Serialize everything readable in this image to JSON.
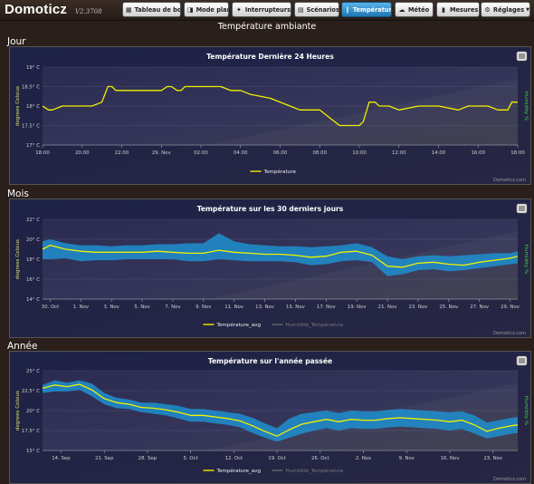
{
  "app": {
    "logo": "Domoticz",
    "version": "V2.3708"
  },
  "nav": [
    {
      "label": "Tableau de bord",
      "icon": "dashboard-icon",
      "glyph": "▦"
    },
    {
      "label": "Mode plan",
      "icon": "floorplan-icon",
      "glyph": "◨"
    },
    {
      "label": "Interrupteurs",
      "icon": "bulb-icon",
      "glyph": "✦"
    },
    {
      "label": "Scénarios",
      "icon": "scenes-icon",
      "glyph": "▤"
    },
    {
      "label": "Température",
      "icon": "thermometer-icon",
      "glyph": "❙",
      "active": true
    },
    {
      "label": "Météo",
      "icon": "weather-icon",
      "glyph": "☁"
    },
    {
      "label": "Mesures",
      "icon": "meter-icon",
      "glyph": "▮"
    },
    {
      "label": "Réglages",
      "icon": "settings-icon",
      "glyph": "⚙",
      "dropdown": true
    }
  ],
  "page_title": "Température ambiante",
  "sections": {
    "day": "Jour",
    "month": "Mois",
    "year": "Année"
  },
  "credit": "Domoticz.com",
  "colors": {
    "line": "#f0f000",
    "band": "#1f8fcf",
    "plot_bg": "#2a2a48",
    "humidity_axis": "#39d339"
  },
  "chart_data": [
    {
      "type": "line",
      "title": "Température Dernière 24 Heures",
      "ylabel": "degrees Celsius",
      "y2label": "Humidity %",
      "ylim": [
        17,
        19
      ],
      "yticks": [
        17,
        17.5,
        18,
        18.5,
        19
      ],
      "ytick_labels": [
        "17° C",
        "17.5° C",
        "18° C",
        "18.5° C",
        "19° C"
      ],
      "xlim": [
        18,
        42
      ],
      "xticks": [
        18,
        20,
        22,
        24,
        26,
        28,
        30,
        32,
        34,
        36,
        38,
        40,
        42
      ],
      "xtick_labels": [
        "18:00",
        "20:00",
        "22:00",
        "29. Nov",
        "02:00",
        "04:00",
        "06:00",
        "08:00",
        "10:00",
        "12:00",
        "14:00",
        "16:00",
        "18:00"
      ],
      "series": [
        {
          "name": "Température",
          "x": [
            18,
            18.3,
            18.5,
            19,
            19.5,
            20,
            20.5,
            21,
            21.3,
            21.5,
            21.7,
            22,
            22.5,
            23,
            24,
            24.3,
            24.5,
            24.8,
            25,
            25.2,
            26,
            27,
            27.5,
            28,
            28.5,
            29.5,
            30.5,
            31,
            32,
            33,
            33.5,
            34,
            34.2,
            34.5,
            34.8,
            35,
            35.5,
            36,
            37,
            38,
            39,
            39.5,
            40,
            40.5,
            41,
            41.5,
            41.7,
            42
          ],
          "values": [
            18,
            17.9,
            17.9,
            18,
            18,
            18,
            18,
            18.1,
            18.5,
            18.5,
            18.4,
            18.4,
            18.4,
            18.4,
            18.4,
            18.5,
            18.5,
            18.4,
            18.4,
            18.5,
            18.5,
            18.5,
            18.4,
            18.4,
            18.3,
            18.2,
            18,
            17.9,
            17.9,
            17.5,
            17.5,
            17.5,
            17.6,
            18.1,
            18.1,
            18,
            18,
            17.9,
            18,
            18,
            17.9,
            18,
            18,
            18,
            17.9,
            17.9,
            18.1,
            18.1
          ]
        }
      ],
      "legend": [
        "Température"
      ]
    },
    {
      "type": "area",
      "title": "Température sur les 30 derniers jours",
      "ylabel": "degrees Celsius",
      "y2label": "Humidity %",
      "ylim": [
        14,
        22
      ],
      "yticks": [
        14,
        16,
        18,
        20,
        22
      ],
      "ytick_labels": [
        "14° C",
        "16° C",
        "18° C",
        "20° C",
        "22° C"
      ],
      "xlim": [
        -0.5,
        30.5
      ],
      "xticks": [
        0,
        2,
        4,
        6,
        8,
        10,
        12,
        14,
        16,
        18,
        20,
        22,
        24,
        26,
        28,
        30
      ],
      "xtick_labels": [
        "30. Oct",
        "1. Nov",
        "3. Nov",
        "5. Nov",
        "7. Nov",
        "9. Nov",
        "11. Nov",
        "13. Nov",
        "15. Nov",
        "17. Nov",
        "19. Nov",
        "21. Nov",
        "23. Nov",
        "25. Nov",
        "27. Nov",
        "29. Nov"
      ],
      "series": [
        {
          "name": "Température_avg",
          "x": [
            -0.5,
            0,
            1,
            2,
            3,
            4,
            5,
            6,
            7,
            8,
            9,
            10,
            11,
            12,
            13,
            14,
            15,
            16,
            17,
            18,
            19,
            20,
            21,
            22,
            23,
            24,
            25,
            26,
            27,
            28,
            29,
            30,
            30.5
          ],
          "values": [
            19,
            19.4,
            19,
            18.8,
            18.7,
            18.7,
            18.7,
            18.7,
            18.8,
            18.7,
            18.6,
            18.6,
            18.9,
            18.7,
            18.6,
            18.5,
            18.5,
            18.4,
            18.2,
            18.3,
            18.7,
            18.8,
            18.4,
            17.3,
            17.2,
            17.6,
            17.7,
            17.5,
            17.4,
            17.7,
            17.9,
            18.1,
            18.3
          ]
        },
        {
          "name": "Température_min",
          "x": [
            -0.5,
            0,
            1,
            2,
            3,
            4,
            5,
            6,
            7,
            8,
            9,
            10,
            11,
            12,
            13,
            14,
            15,
            16,
            17,
            18,
            19,
            20,
            21,
            22,
            23,
            24,
            25,
            26,
            27,
            28,
            29,
            30,
            30.5
          ],
          "values": [
            18,
            18,
            18.1,
            17.8,
            17.9,
            17.9,
            18,
            18,
            18,
            18,
            17.8,
            17.8,
            18,
            17.9,
            17.8,
            17.8,
            17.8,
            17.7,
            17.4,
            17.5,
            17.8,
            17.9,
            17.7,
            16.3,
            16.5,
            16.9,
            17,
            16.8,
            16.9,
            17.1,
            17.3,
            17.5,
            17.6
          ]
        },
        {
          "name": "Température_max",
          "x": [
            -0.5,
            0,
            1,
            2,
            3,
            4,
            5,
            6,
            7,
            8,
            9,
            10,
            11,
            12,
            13,
            14,
            15,
            16,
            17,
            18,
            19,
            20,
            21,
            22,
            23,
            24,
            25,
            26,
            27,
            28,
            29,
            30,
            30.5
          ],
          "values": [
            19.8,
            20,
            19.6,
            19.4,
            19.4,
            19.3,
            19.4,
            19.4,
            19.5,
            19.5,
            19.6,
            19.6,
            20.6,
            19.8,
            19.5,
            19.4,
            19.3,
            19.3,
            19.2,
            19.3,
            19.4,
            19.6,
            19.2,
            18.3,
            18,
            18.3,
            18.4,
            18.3,
            18.4,
            18.5,
            18.6,
            18.6,
            18.8
          ]
        }
      ],
      "legend": [
        "Température_avg",
        "Humidité_Température"
      ]
    },
    {
      "type": "area",
      "title": "Température sur l'année passée",
      "ylabel": "degrees Celsius",
      "y2label": "Humidity %",
      "ylim": [
        15,
        25
      ],
      "yticks": [
        15,
        17.5,
        20,
        22.5,
        25
      ],
      "ytick_labels": [
        "15° C",
        "17.5° C",
        "20° C",
        "22.5° C",
        "25° C"
      ],
      "xlim": [
        0,
        77
      ],
      "xticks": [
        3,
        10,
        17,
        24,
        31,
        38,
        45,
        52,
        59,
        66,
        73
      ],
      "xtick_labels": [
        "14. Sep",
        "21. Sep",
        "28. Sep",
        "5. Oct",
        "12. Oct",
        "19. Oct",
        "26. Oct",
        "2. Nov",
        "9. Nov",
        "16. Nov",
        "23. Nov"
      ],
      "series": [
        {
          "name": "Température_avg",
          "x": [
            0,
            2,
            4,
            6,
            8,
            10,
            12,
            14,
            16,
            18,
            20,
            22,
            24,
            26,
            28,
            30,
            32,
            34,
            36,
            38,
            40,
            42,
            44,
            46,
            48,
            50,
            52,
            54,
            56,
            58,
            60,
            62,
            64,
            66,
            68,
            70,
            72,
            74,
            76,
            77
          ],
          "values": [
            22.8,
            23.2,
            23,
            23.3,
            22.6,
            21.5,
            21,
            20.8,
            20.4,
            20.3,
            20.1,
            19.8,
            19.4,
            19.4,
            19.2,
            19,
            18.7,
            18.1,
            17.4,
            16.8,
            17.6,
            18.3,
            18.6,
            18.9,
            18.6,
            18.9,
            18.8,
            18.8,
            19,
            19.1,
            19,
            18.9,
            18.8,
            18.6,
            18.8,
            18.2,
            17.4,
            17.8,
            18.1,
            18.2
          ]
        },
        {
          "name": "Température_min",
          "x": [
            0,
            2,
            4,
            6,
            8,
            10,
            12,
            14,
            16,
            18,
            20,
            22,
            24,
            26,
            28,
            30,
            32,
            34,
            36,
            38,
            40,
            42,
            44,
            46,
            48,
            50,
            52,
            54,
            56,
            58,
            60,
            62,
            64,
            66,
            68,
            70,
            72,
            74,
            76,
            77
          ],
          "values": [
            22.2,
            22.4,
            22.4,
            22.6,
            21.8,
            20.8,
            20.3,
            20.2,
            19.8,
            19.6,
            19.4,
            19,
            18.6,
            18.6,
            18.4,
            18.2,
            17.9,
            17.2,
            16.6,
            16.1,
            16.6,
            17.1,
            17.5,
            17.8,
            17.5,
            17.8,
            17.7,
            17.7,
            17.9,
            18,
            17.9,
            17.8,
            17.7,
            17.5,
            17.7,
            17.1,
            16.5,
            16.8,
            17.1,
            17.2
          ]
        },
        {
          "name": "Température_max",
          "x": [
            0,
            2,
            4,
            6,
            8,
            10,
            12,
            14,
            16,
            18,
            20,
            22,
            24,
            26,
            28,
            30,
            32,
            34,
            36,
            38,
            40,
            42,
            44,
            46,
            48,
            50,
            52,
            54,
            56,
            58,
            60,
            62,
            64,
            66,
            68,
            70,
            72,
            74,
            76,
            77
          ],
          "values": [
            23.2,
            23.8,
            23.5,
            23.8,
            23.4,
            22.2,
            21.6,
            21.4,
            21,
            21,
            20.8,
            20.6,
            20.2,
            20.2,
            20,
            19.8,
            19.6,
            19.1,
            18.4,
            17.8,
            19,
            19.6,
            19.8,
            20,
            19.7,
            20,
            19.9,
            19.9,
            20.1,
            20.2,
            20.1,
            20,
            19.9,
            19.8,
            19.9,
            19.4,
            18.5,
            18.8,
            19.1,
            19.2
          ]
        }
      ],
      "legend": [
        "Température_avg",
        "Humidité_Température"
      ]
    }
  ]
}
